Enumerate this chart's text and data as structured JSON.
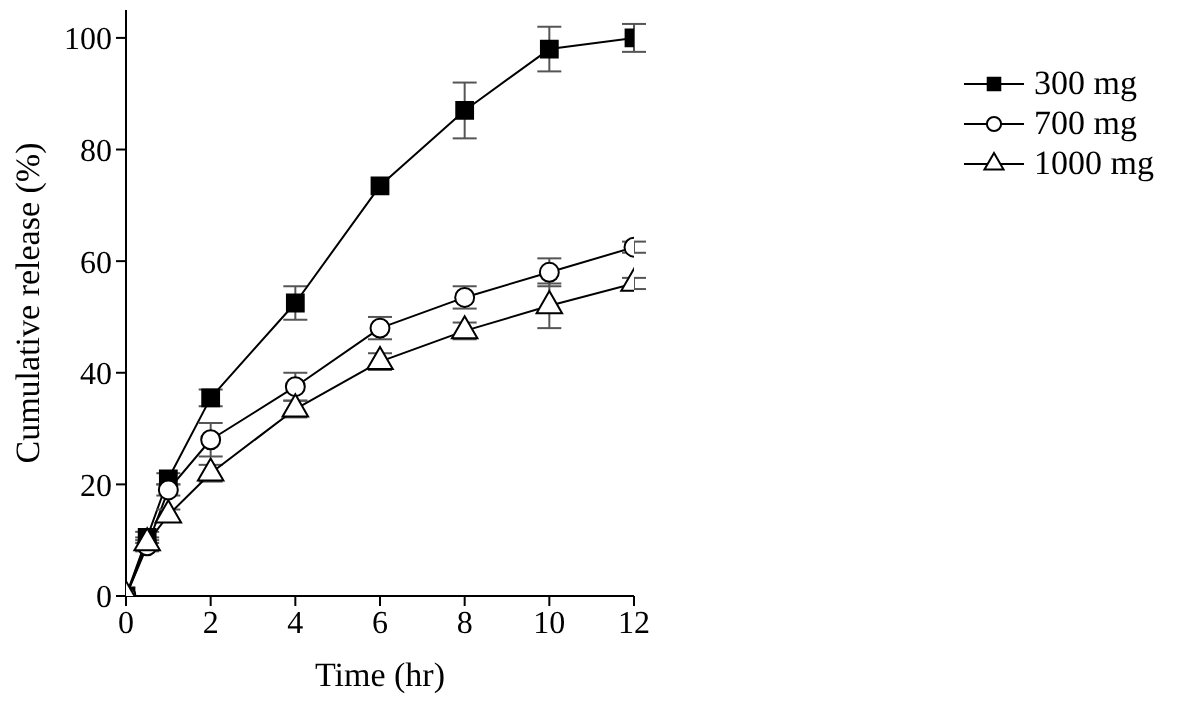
{
  "chart_data": {
    "type": "line",
    "xlabel": "Time (hr)",
    "ylabel": "Cumulative release (%)",
    "x": [
      0,
      0.5,
      1,
      2,
      4,
      6,
      8,
      10,
      12
    ],
    "xlim": [
      0,
      12
    ],
    "xticks": [
      0,
      2,
      4,
      6,
      8,
      10,
      12
    ],
    "ylim": [
      0,
      105
    ],
    "yticks": [
      0,
      20,
      40,
      60,
      80,
      100
    ],
    "legend": "top right",
    "grid": false,
    "series": [
      {
        "name": "300 mg",
        "color": "#000000",
        "marker": "square",
        "values": [
          0,
          10.5,
          21,
          35.5,
          52.5,
          73.5,
          87,
          98,
          100
        ],
        "errors": [
          null,
          1,
          1,
          1.5,
          3,
          null,
          5,
          4,
          2.5
        ]
      },
      {
        "name": "700 mg",
        "color": "#000000",
        "marker": "circle",
        "values": [
          0,
          9,
          19,
          28,
          37.5,
          48,
          53.5,
          58,
          62.5
        ],
        "errors": [
          null,
          1,
          1,
          3,
          2.5,
          2,
          2,
          2.5,
          1
        ]
      },
      {
        "name": "1000 mg",
        "color": "#000000",
        "marker": "triangle",
        "values": [
          0,
          9.5,
          14.5,
          22,
          33.5,
          42,
          47.5,
          52,
          56
        ],
        "errors": [
          null,
          1,
          1,
          1.5,
          1.5,
          1.5,
          1.5,
          4,
          1
        ]
      }
    ]
  }
}
